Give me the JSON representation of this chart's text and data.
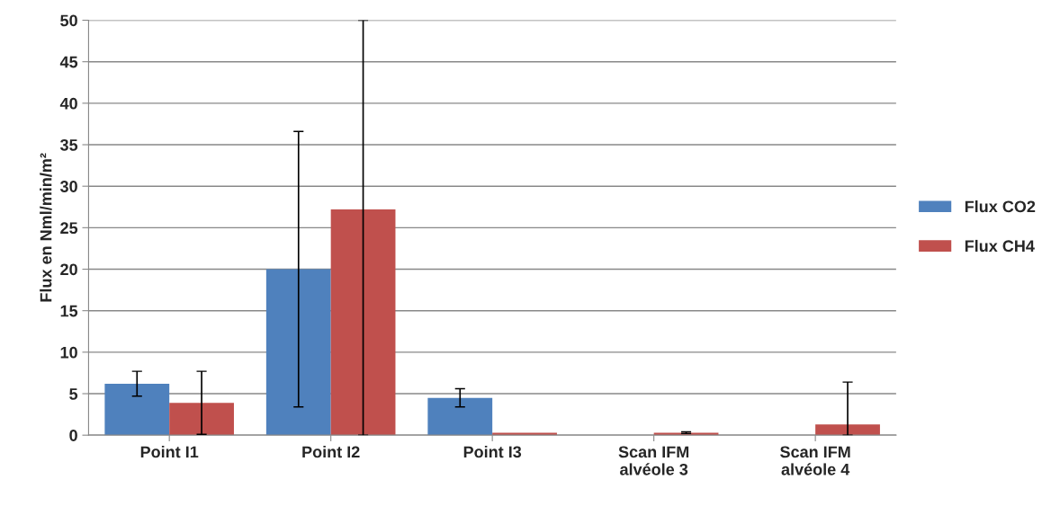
{
  "chart_data": {
    "type": "bar",
    "ylabel": "Flux en Nml/min/m²",
    "categories": [
      "Point I1",
      "Point I2",
      "Point I3",
      "Scan IFM\nalvéole 3",
      "Scan IFM\nalvéole 4"
    ],
    "series": [
      {
        "name": "Flux CO2",
        "color": "#4f81bd",
        "values": [
          6.2,
          20.0,
          4.5,
          null,
          null
        ],
        "errors": [
          1.5,
          16.6,
          1.1,
          null,
          null
        ]
      },
      {
        "name": "Flux CH4",
        "color": "#c0504d",
        "values": [
          3.9,
          27.2,
          0.3,
          0.3,
          1.3
        ],
        "errors": [
          3.8,
          [
            0,
            50
          ],
          null,
          0.1,
          [
            0,
            6.4
          ]
        ]
      }
    ],
    "ylim": [
      0,
      50
    ],
    "yticks": [
      0,
      5,
      10,
      15,
      20,
      25,
      30,
      35,
      40,
      45,
      50
    ],
    "grid": "y",
    "legend": "right"
  }
}
